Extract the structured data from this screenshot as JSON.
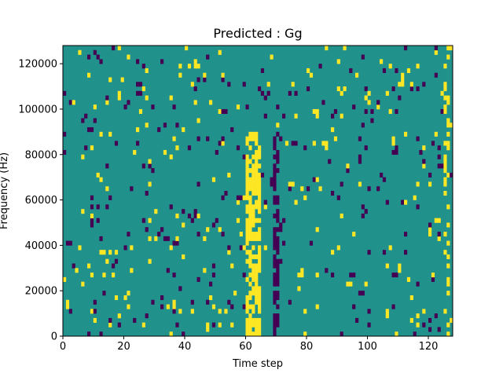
{
  "chart_data": {
    "type": "heatmap",
    "title": "Predicted : Gg",
    "xlabel": "Time step",
    "ylabel": "Frequency (Hz)",
    "xlim": [
      0,
      128
    ],
    "ylim": [
      0,
      128000
    ],
    "x_ticks": [
      0,
      20,
      40,
      60,
      80,
      100,
      120
    ],
    "y_ticks": [
      0,
      20000,
      40000,
      60000,
      80000,
      100000,
      120000
    ],
    "n_time_steps": 128,
    "n_freq_bins": 64,
    "colormap": {
      "low": "#440154",
      "mid": "#21918c",
      "high": "#fde725"
    },
    "background_value": "mid",
    "noise_density": 0.06,
    "high_band": {
      "time_start": 60,
      "time_end": 64,
      "freq_min": 0,
      "freq_max": 88000,
      "density": 0.7
    },
    "low_band": {
      "time_start": 69,
      "time_end": 70,
      "freq_min": 0,
      "freq_max": 88000,
      "density": 0.65
    },
    "edge_columns": {
      "time_start": 125,
      "time_end": 126,
      "value": "high",
      "density": 0.35
    }
  }
}
